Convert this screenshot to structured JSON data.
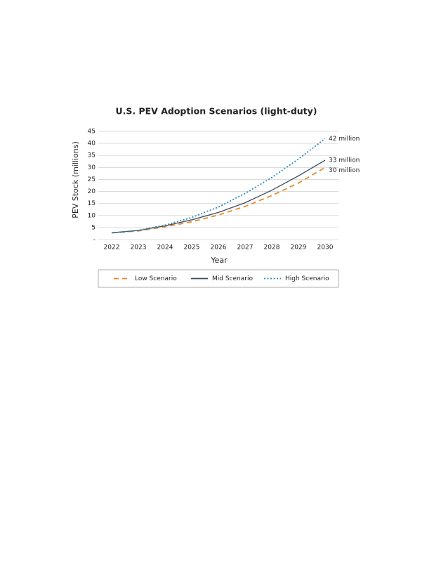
{
  "chart_data": {
    "type": "line",
    "title": "U.S. PEV Adoption Scenarios (light-duty)",
    "x_label": "Year",
    "y_label": "PEV Stock (millions)",
    "categories": [
      "2022",
      "2023",
      "2024",
      "2025",
      "2026",
      "2027",
      "2028",
      "2029",
      "2030"
    ],
    "series": [
      {
        "name": "Low Scenario",
        "color": "#e8892b",
        "dash": "dashed",
        "values": [
          2.8,
          3.6,
          5.3,
          7.4,
          10.2,
          13.8,
          18.3,
          23.5,
          30
        ],
        "end_label": "30 million"
      },
      {
        "name": "Mid Scenario",
        "color": "#3b4a5e",
        "dash": "solid",
        "values": [
          2.8,
          3.8,
          5.7,
          8.2,
          11.3,
          15.3,
          20.5,
          26.5,
          33
        ],
        "end_label": "33 million"
      },
      {
        "name": "High Scenario",
        "color": "#2a8bbb",
        "dash": "dotted",
        "values": [
          2.8,
          3.8,
          6.0,
          9.2,
          13.5,
          19.2,
          25.8,
          33.5,
          42
        ],
        "end_label": "42 million"
      }
    ],
    "ylim": [
      0,
      45
    ],
    "yticks": [
      {
        "value": 0,
        "label": "-"
      },
      5,
      10,
      15,
      20,
      25,
      30,
      35,
      40,
      45
    ],
    "grid": true,
    "legend": "bottom"
  }
}
